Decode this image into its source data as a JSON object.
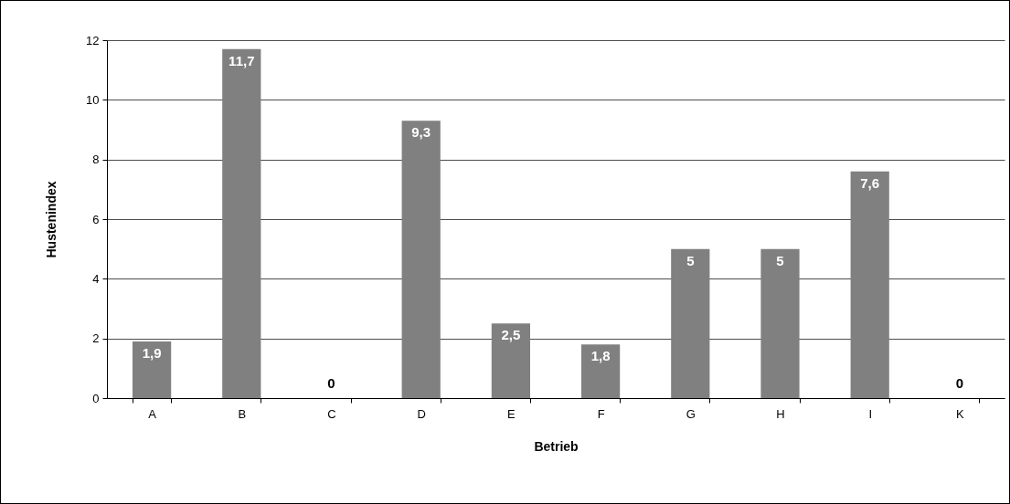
{
  "chart_data": {
    "type": "bar",
    "xlabel": "Betrieb",
    "ylabel": "Hustenindex",
    "categories": [
      "A",
      "B",
      "C",
      "D",
      "E",
      "F",
      "G",
      "H",
      "I",
      "K"
    ],
    "values": [
      1.9,
      11.7,
      0,
      9.3,
      2.5,
      1.8,
      5,
      5,
      7.6,
      0
    ],
    "value_labels": [
      "1,9",
      "11,7",
      "0",
      "9,3",
      "2,5",
      "1,8",
      "5",
      "5",
      "7,6",
      "0"
    ],
    "color": "#808080",
    "ylim": [
      0,
      12
    ],
    "yticks": [
      0,
      2,
      4,
      6,
      8,
      10,
      12
    ],
    "grid": "y"
  }
}
